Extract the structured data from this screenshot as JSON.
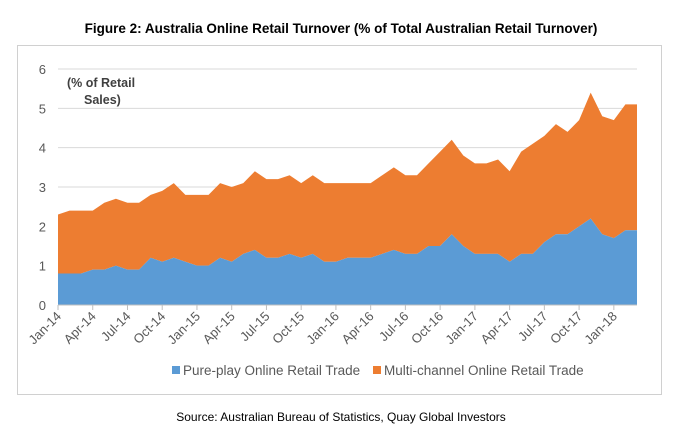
{
  "figure_title": "Figure 2: Australia Online Retail Turnover (% of Total Australian Retail Turnover)",
  "source_text": "Source: Australian Bureau of Statistics, Quay Global Investors",
  "chart_data": {
    "type": "area",
    "stacked": true,
    "title": "Figure 2: Australia Online Retail Turnover (% of Total Australian Retail Turnover)",
    "unit_annotation_line1": "(% of Retail",
    "unit_annotation_line2": "Sales)",
    "ylim": [
      0,
      6
    ],
    "yticks": [
      0,
      1,
      2,
      3,
      4,
      5,
      6
    ],
    "x_tick_labels": [
      "Jan-14",
      "Apr-14",
      "Jul-14",
      "Oct-14",
      "Jan-15",
      "Apr-15",
      "Jul-15",
      "Oct-15",
      "Jan-16",
      "Apr-16",
      "Jul-16",
      "Oct-16",
      "Jan-17",
      "Apr-17",
      "Jul-17",
      "Oct-17",
      "Jan-18"
    ],
    "grid": "horizontal",
    "legend_position": "bottom",
    "x": [
      "Jan-14",
      "Feb-14",
      "Mar-14",
      "Apr-14",
      "May-14",
      "Jun-14",
      "Jul-14",
      "Aug-14",
      "Sep-14",
      "Oct-14",
      "Nov-14",
      "Dec-14",
      "Jan-15",
      "Feb-15",
      "Mar-15",
      "Apr-15",
      "May-15",
      "Jun-15",
      "Jul-15",
      "Aug-15",
      "Sep-15",
      "Oct-15",
      "Nov-15",
      "Dec-15",
      "Jan-16",
      "Feb-16",
      "Mar-16",
      "Apr-16",
      "May-16",
      "Jun-16",
      "Jul-16",
      "Aug-16",
      "Sep-16",
      "Oct-16",
      "Nov-16",
      "Dec-16",
      "Jan-17",
      "Feb-17",
      "Mar-17",
      "Apr-17",
      "May-17",
      "Jun-17",
      "Jul-17",
      "Aug-17",
      "Sep-17",
      "Oct-17",
      "Nov-17",
      "Dec-17",
      "Jan-18",
      "Feb-18",
      "Mar-18"
    ],
    "series": [
      {
        "name": "Pure-play Online Retail Trade",
        "color": "#5B9BD5",
        "values": [
          0.8,
          0.8,
          0.8,
          0.9,
          0.9,
          1.0,
          0.9,
          0.9,
          1.2,
          1.1,
          1.2,
          1.1,
          1.0,
          1.0,
          1.2,
          1.1,
          1.3,
          1.4,
          1.2,
          1.2,
          1.3,
          1.2,
          1.3,
          1.1,
          1.1,
          1.2,
          1.2,
          1.2,
          1.3,
          1.4,
          1.3,
          1.3,
          1.5,
          1.5,
          1.8,
          1.5,
          1.3,
          1.3,
          1.3,
          1.1,
          1.3,
          1.3,
          1.6,
          1.8,
          1.8,
          2.0,
          2.2,
          1.8,
          1.7,
          1.9,
          1.9
        ]
      },
      {
        "name": "Multi-channel Online Retail Trade",
        "color": "#ED7D31",
        "values": [
          1.5,
          1.6,
          1.6,
          1.5,
          1.7,
          1.7,
          1.7,
          1.7,
          1.6,
          1.8,
          1.9,
          1.7,
          1.8,
          1.8,
          1.9,
          1.9,
          1.8,
          2.0,
          2.0,
          2.0,
          2.0,
          1.9,
          2.0,
          2.0,
          2.0,
          1.9,
          1.9,
          1.9,
          2.0,
          2.1,
          2.0,
          2.0,
          2.1,
          2.4,
          2.4,
          2.3,
          2.3,
          2.3,
          2.4,
          2.3,
          2.6,
          2.8,
          2.7,
          2.8,
          2.6,
          2.7,
          3.2,
          3.0,
          3.0,
          3.2,
          3.2
        ]
      }
    ]
  }
}
